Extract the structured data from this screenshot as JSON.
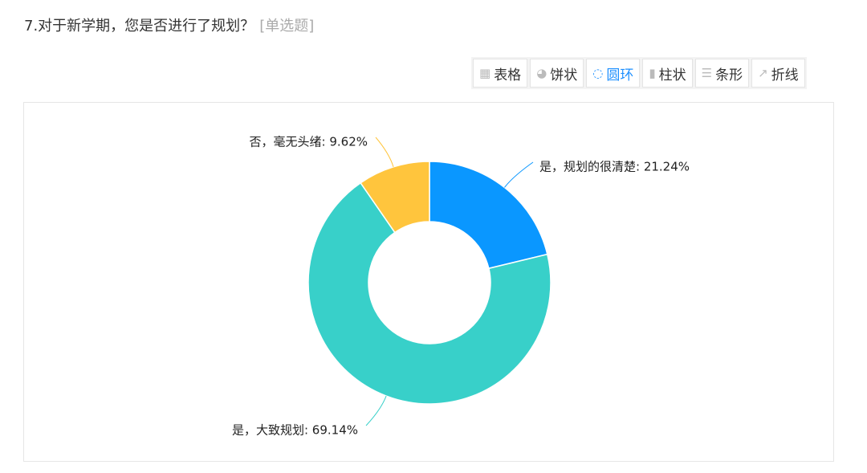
{
  "question": {
    "title": "7.对于新学期，您是否进行了规划？",
    "type_tag": "[单选题]"
  },
  "toolbar": [
    {
      "label": "表格",
      "icon": "table-icon",
      "active": false
    },
    {
      "label": "饼状",
      "icon": "pie-icon",
      "active": false
    },
    {
      "label": "圆环",
      "icon": "donut-icon",
      "active": true
    },
    {
      "label": "柱状",
      "icon": "bar-chart-icon",
      "active": false
    },
    {
      "label": "条形",
      "icon": "horizontal-bar-icon",
      "active": false
    },
    {
      "label": "折线",
      "icon": "line-chart-icon",
      "active": false
    }
  ],
  "chart_data": {
    "type": "pie",
    "variant": "donut",
    "categories": [
      "是，规划的很清楚",
      "是，大致规划",
      "否，毫无头绪"
    ],
    "values": [
      21.24,
      69.14,
      9.62
    ],
    "unit": "%",
    "colors": [
      "#0a97ff",
      "#38d0c9",
      "#ffc53d"
    ],
    "labels": [
      "是，规划的很清楚: 21.24%",
      "是，大致规划: 69.14%",
      "否，毫无头绪: 9.62%"
    ]
  }
}
